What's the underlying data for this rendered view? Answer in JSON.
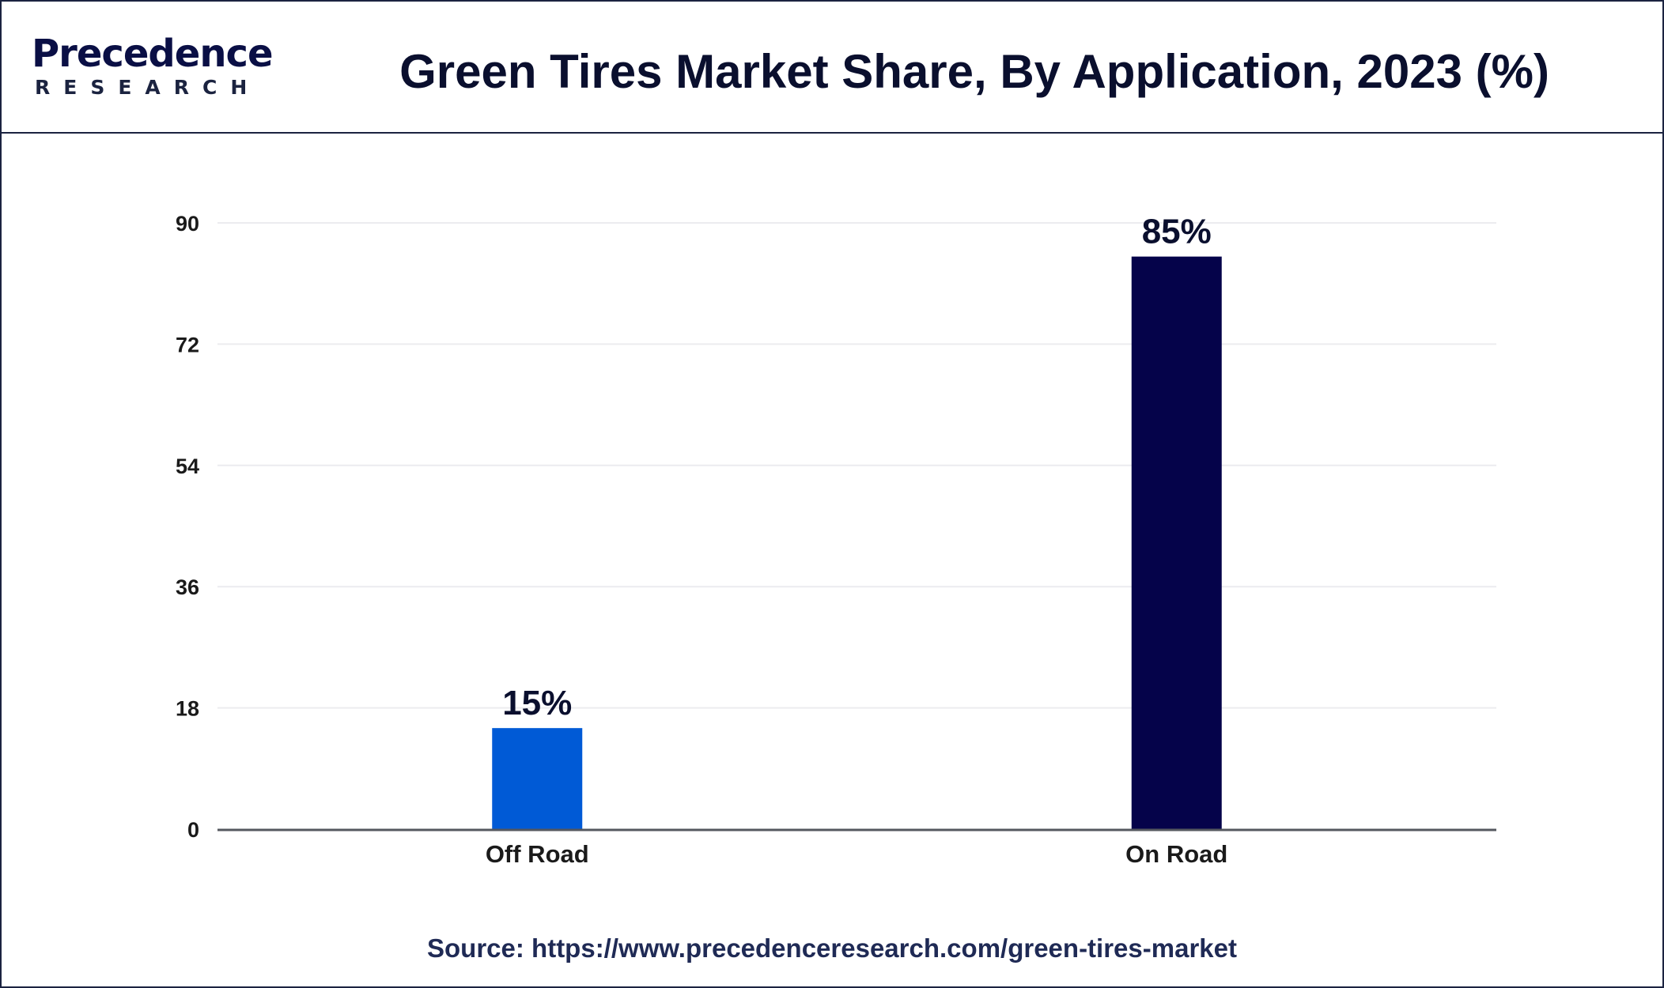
{
  "header": {
    "logo_main": "Precedence",
    "logo_sub": "RESEARCH",
    "title": "Green Tires Market Share, By Application, 2023 (%)"
  },
  "chart_data": {
    "type": "bar",
    "title": "Green Tires Market Share, By Application, 2023 (%)",
    "categories": [
      "Off Road",
      "On Road"
    ],
    "values": [
      15,
      85
    ],
    "data_labels": [
      "15%",
      "85%"
    ],
    "bar_colors": [
      "#005ad6",
      "#05034a"
    ],
    "xlabel": "",
    "ylabel": "",
    "ylim": [
      0,
      90
    ],
    "y_ticks": [
      0,
      18,
      36,
      54,
      72,
      90
    ],
    "grid": true,
    "legend": "none"
  },
  "footer": {
    "source": "Source: https://www.precedenceresearch.com/green-tires-market"
  }
}
